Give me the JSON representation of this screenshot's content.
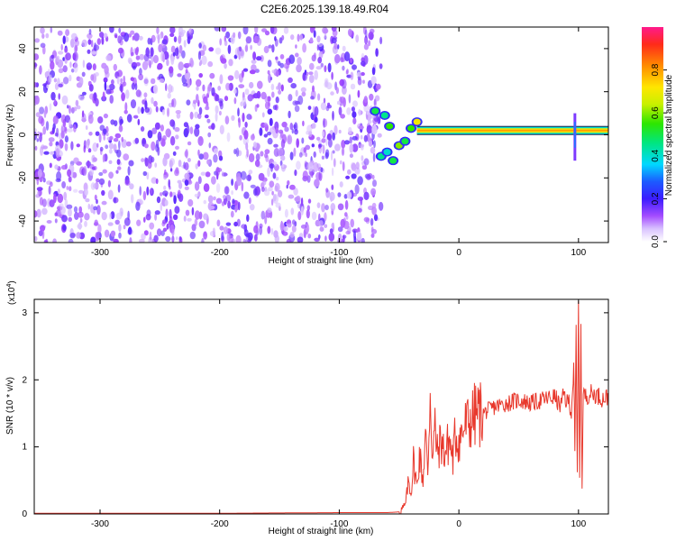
{
  "title": "C2E6.2025.139.18.49.R04",
  "chart_data": [
    {
      "type": "heatmap",
      "xlabel": "Height of straight line (km)",
      "ylabel": "Frequency (Hz)",
      "xlim": [
        -355,
        125
      ],
      "ylim": [
        -50,
        50
      ],
      "xticks": [
        -300,
        -200,
        -100,
        0,
        100
      ],
      "yticks": [
        -40,
        -20,
        0,
        20,
        40
      ],
      "xtick_labels": [
        "-300",
        "-200",
        "-100",
        "0",
        "100"
      ],
      "ytick_labels": [
        "-40",
        "-20",
        "0",
        "20",
        "40"
      ],
      "colorbar": {
        "label": "Normalized spectral amplitude",
        "range": [
          0,
          1
        ],
        "ticks": [
          "0.0",
          "0.2",
          "0.4",
          "0.6",
          "0.8"
        ],
        "tick_values": [
          0,
          0.2,
          0.4,
          0.6,
          0.8
        ]
      },
      "noise_region_x": [
        -355,
        -65
      ],
      "signal_line": {
        "frequency_hz": 2,
        "x_start": -35,
        "x_end": 125,
        "amplitude": 0.8
      },
      "transition_points": [
        {
          "x": -70,
          "y": 11,
          "a": 0.5
        },
        {
          "x": -62,
          "y": 9,
          "a": 0.45
        },
        {
          "x": -58,
          "y": 4,
          "a": 0.55
        },
        {
          "x": -50,
          "y": -5,
          "a": 0.6
        },
        {
          "x": -45,
          "y": -3,
          "a": 0.5
        },
        {
          "x": -40,
          "y": 3,
          "a": 0.55
        },
        {
          "x": -35,
          "y": 6,
          "a": 0.7
        },
        {
          "x": -65,
          "y": -10,
          "a": 0.45
        },
        {
          "x": -55,
          "y": -12,
          "a": 0.5
        },
        {
          "x": -60,
          "y": -8,
          "a": 0.4
        }
      ],
      "spike_x": 97
    },
    {
      "type": "line",
      "xlabel": "Height of straight line (km)",
      "ylabel": "SNR (10 * v/v)",
      "y_multiplier_label": "(x10",
      "y_multiplier_exp": "4",
      "xlim": [
        -355,
        125
      ],
      "ylim": [
        0,
        3.2
      ],
      "xticks": [
        -300,
        -200,
        -100,
        0,
        100
      ],
      "yticks": [
        0,
        1,
        2,
        3
      ],
      "xtick_labels": [
        "-300",
        "-200",
        "-100",
        "0",
        "100"
      ],
      "ytick_labels": [
        "0",
        "1",
        "2",
        "3"
      ],
      "color": "#e8382c",
      "series": [
        {
          "values_x": [
            -355,
            -300,
            -200,
            -100,
            -60,
            -50,
            -45,
            -42,
            -40,
            -38,
            -35,
            -33,
            -30,
            -28,
            -26,
            -24,
            -22,
            -20,
            -18,
            -15,
            -12,
            -10,
            -8,
            -5,
            -3,
            0,
            5,
            10,
            15,
            20,
            25,
            30,
            40,
            50,
            60,
            70,
            80,
            85,
            88,
            90,
            92,
            94,
            96,
            97,
            98,
            99,
            100,
            101,
            102,
            103,
            104,
            106,
            110,
            115,
            120,
            125
          ],
          "values_y": [
            0.01,
            0.01,
            0.01,
            0.02,
            0.02,
            0.03,
            0.1,
            0.5,
            0.3,
            0.8,
            0.4,
            0.9,
            0.5,
            1.2,
            0.6,
            1.9,
            0.8,
            1.3,
            0.9,
            1.1,
            0.9,
            1.0,
            1.1,
            0.8,
            1.2,
            1.1,
            1.3,
            1.4,
            1.5,
            1.5,
            1.55,
            1.6,
            1.65,
            1.7,
            1.65,
            1.7,
            1.75,
            1.6,
            1.8,
            1.65,
            1.7,
            1.5,
            2.2,
            0.9,
            2.7,
            0.6,
            3.2,
            0.5,
            2.9,
            0.4,
            1.8,
            1.75,
            1.8,
            1.78,
            1.72,
            1.75
          ]
        }
      ]
    }
  ]
}
